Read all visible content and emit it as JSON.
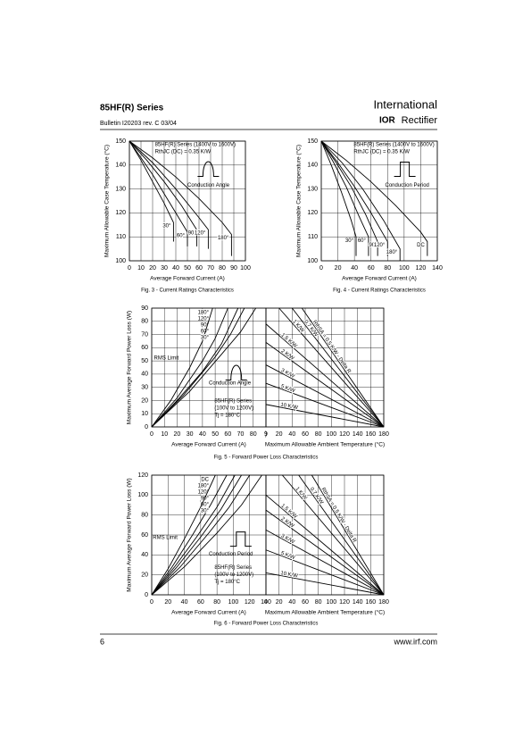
{
  "header": {
    "title": "85HF(R) Series",
    "bulletin": "Bulletin  I20203  rev. C  03/04",
    "logo_top": "International",
    "logo_ior": "IOR",
    "logo_bottom": "Rectifier"
  },
  "footer": {
    "page": "6",
    "url": "www.irf.com"
  },
  "chart_data": [
    {
      "type": "line",
      "color": "#000000",
      "grid": true,
      "xlabel": "Average Forward Current (A)",
      "ylabel": "Maximum Allowable Case Temperature (°C)",
      "caption": "Fig. 3 - Current Ratings Characteristics",
      "xlim": [
        0,
        100
      ],
      "xticks": [
        0,
        10,
        20,
        30,
        40,
        50,
        60,
        70,
        80,
        90,
        100
      ],
      "ylim": [
        100,
        150
      ],
      "yticks": [
        100,
        110,
        120,
        130,
        140,
        150
      ],
      "annotations": [
        "85HF(R) Series (1400V to 1600V)",
        "RthJC (DC) = 0.35 K/W",
        "Conduction Angle"
      ],
      "series": [
        {
          "name": "30°",
          "x": [
            0,
            10,
            20,
            30,
            38,
            38
          ],
          "values": [
            150,
            142,
            133,
            124,
            116,
            108
          ]
        },
        {
          "name": "60°",
          "x": [
            0,
            10,
            20,
            30,
            40,
            50,
            50
          ],
          "values": [
            150,
            143,
            136,
            128,
            120,
            112,
            106
          ]
        },
        {
          "name": "90",
          "x": [
            0,
            15,
            30,
            45,
            58,
            58
          ],
          "values": [
            150,
            142,
            133,
            123,
            113,
            106
          ]
        },
        {
          "name": "120°",
          "x": [
            0,
            20,
            40,
            60,
            68,
            68
          ],
          "values": [
            150,
            141,
            130,
            118,
            113,
            105
          ]
        },
        {
          "name": "180°",
          "x": [
            0,
            20,
            40,
            60,
            80,
            88,
            88
          ],
          "values": [
            150,
            143,
            135,
            126,
            116,
            111,
            102
          ]
        }
      ]
    },
    {
      "type": "line",
      "color": "#000000",
      "grid": true,
      "xlabel": "Average Forward Current (A)",
      "ylabel": "Maximum Allowable Case Temperature (°C)",
      "caption": "Fig. 4 - Current Ratings Characteristics",
      "xlim": [
        0,
        140
      ],
      "xticks": [
        0,
        20,
        40,
        60,
        80,
        100,
        120,
        140
      ],
      "ylim": [
        100,
        150
      ],
      "yticks": [
        100,
        110,
        120,
        130,
        140,
        150
      ],
      "annotations": [
        "85HF(R) Series (1400V to 1600V)",
        "RthJC (DC) = 0.35 K/W",
        "Conduction Period"
      ],
      "series": [
        {
          "name": "30°",
          "x": [
            0,
            12,
            24,
            36,
            42,
            42
          ],
          "values": [
            150,
            140,
            129,
            117,
            110,
            102
          ]
        },
        {
          "name": "60°",
          "x": [
            0,
            15,
            30,
            45,
            57,
            57
          ],
          "values": [
            150,
            141,
            131,
            119,
            110,
            102
          ]
        },
        {
          "name": "90",
          "x": [
            0,
            18,
            36,
            54,
            68,
            68
          ],
          "values": [
            150,
            141,
            131,
            119,
            108,
            102
          ]
        },
        {
          "name": "120°",
          "x": [
            0,
            20,
            40,
            60,
            80,
            80
          ],
          "values": [
            150,
            141,
            131,
            120,
            108,
            102
          ]
        },
        {
          "name": "180°",
          "x": [
            0,
            25,
            50,
            75,
            95,
            95
          ],
          "values": [
            150,
            141,
            130,
            117,
            105,
            100
          ]
        },
        {
          "name": "DC",
          "x": [
            0,
            30,
            60,
            90,
            120,
            128,
            128
          ],
          "values": [
            150,
            142,
            133,
            123,
            112,
            108,
            102
          ]
        }
      ]
    },
    {
      "type": "line",
      "color": "#000000",
      "grid": true,
      "xlabel": "Average Forward Current (A)",
      "ylabel": "Maximum Average Forward Power Loss (W)",
      "caption": "Fig. 5 - Forward Power Loss Characteristics",
      "xlim": [
        0,
        90
      ],
      "xticks": [
        0,
        10,
        20,
        30,
        40,
        50,
        60,
        70,
        80,
        {
          "value": 90,
          "label": "9"
        }
      ],
      "ylim": [
        0,
        90
      ],
      "yticks": [
        0,
        10,
        20,
        30,
        40,
        50,
        60,
        70,
        80,
        90
      ],
      "annotations": [
        "RMS Limit",
        "Conduction Angle",
        "85HF(R) Series",
        "(100V to 1200V)",
        "Tj = 180°C"
      ],
      "series": [
        {
          "name": "180°",
          "x": [
            0,
            30,
            55,
            70,
            82
          ],
          "values": [
            0,
            27,
            55,
            72,
            90
          ]
        },
        {
          "name": "120°",
          "x": [
            0,
            25,
            50,
            62,
            73
          ],
          "values": [
            0,
            24,
            53,
            70,
            90
          ]
        },
        {
          "name": "90°",
          "x": [
            0,
            20,
            40,
            55,
            68
          ],
          "values": [
            0,
            20,
            42,
            63,
            90
          ]
        },
        {
          "name": "60°",
          "x": [
            0,
            20,
            40,
            50,
            60
          ],
          "values": [
            0,
            22,
            50,
            67,
            90
          ]
        },
        {
          "name": "30°",
          "x": [
            0,
            15,
            30,
            40,
            48
          ],
          "values": [
            0,
            20,
            45,
            65,
            90
          ]
        }
      ]
    },
    {
      "type": "line",
      "color": "#000000",
      "grid": true,
      "xlabel": "Maximum Allowable Ambient Temperature (°C)",
      "xlim": [
        0,
        180
      ],
      "xticks": [
        {
          "value": 0,
          "label": ")"
        },
        20,
        40,
        60,
        80,
        100,
        120,
        140,
        160,
        180
      ],
      "ylim": [
        0,
        90
      ],
      "series": [
        {
          "name": "RthSA = 0.5 K/W - Delta R",
          "x": [
            55,
            180
          ],
          "values": [
            90,
            0
          ]
        },
        {
          "name": "0.7 K/W",
          "x": [
            40,
            180
          ],
          "values": [
            90,
            0
          ]
        },
        {
          "name": "1 K/W",
          "x": [
            20,
            180
          ],
          "values": [
            90,
            0
          ]
        },
        {
          "name": "1.5 K/W",
          "x": [
            0,
            180
          ],
          "values": [
            78,
            0
          ]
        },
        {
          "name": "2 K/W",
          "x": [
            0,
            180
          ],
          "values": [
            64,
            0
          ]
        },
        {
          "name": "3 K/W",
          "x": [
            0,
            180
          ],
          "values": [
            47,
            0
          ]
        },
        {
          "name": "5 K/W",
          "x": [
            0,
            180
          ],
          "values": [
            33,
            0
          ]
        },
        {
          "name": "10 K/W",
          "x": [
            0,
            180
          ],
          "values": [
            17,
            0
          ]
        }
      ]
    },
    {
      "type": "line",
      "color": "#000000",
      "grid": true,
      "xlabel": "Average Forward Current (A)",
      "ylabel": "Maximum Average Forward Power Loss (W)",
      "caption": "Fig. 6 - Forward Power Loss Characteristics",
      "xlim": [
        0,
        140
      ],
      "xticks": [
        0,
        20,
        40,
        60,
        80,
        100,
        120,
        140
      ],
      "ylim": [
        0,
        120
      ],
      "yticks": [
        0,
        20,
        40,
        60,
        80,
        100,
        120
      ],
      "annotations": [
        "RMS Limit",
        "Conduction Period",
        "85HF(R) Series",
        "(100V to 1200V)",
        "Tj = 180°C"
      ],
      "series": [
        {
          "name": "DC",
          "x": [
            0,
            40,
            80,
            110,
            135
          ],
          "values": [
            0,
            28,
            62,
            90,
            120
          ]
        },
        {
          "name": "180°",
          "x": [
            0,
            35,
            70,
            95,
            120
          ],
          "values": [
            0,
            28,
            62,
            88,
            120
          ]
        },
        {
          "name": "120°",
          "x": [
            0,
            30,
            60,
            85,
            110
          ],
          "values": [
            0,
            27,
            58,
            86,
            120
          ]
        },
        {
          "name": "90°",
          "x": [
            0,
            28,
            55,
            80,
            102
          ],
          "values": [
            0,
            28,
            58,
            88,
            120
          ]
        },
        {
          "name": "60°",
          "x": [
            0,
            25,
            50,
            72,
            92
          ],
          "values": [
            0,
            28,
            60,
            90,
            120
          ]
        },
        {
          "name": "30°",
          "x": [
            0,
            20,
            40,
            60,
            78
          ],
          "values": [
            0,
            26,
            56,
            88,
            120
          ]
        }
      ]
    },
    {
      "type": "line",
      "color": "#000000",
      "grid": true,
      "xlabel": "Maximum Allowable Ambient Temperature (°C)",
      "xlim": [
        0,
        180
      ],
      "xticks": [
        0,
        20,
        40,
        60,
        80,
        100,
        120,
        140,
        160,
        180
      ],
      "ylim": [
        0,
        120
      ],
      "series": [
        {
          "name": "RthSA = 0.5 K/W - Delta R",
          "x": [
            70,
            180
          ],
          "values": [
            120,
            0
          ]
        },
        {
          "name": "0.7 K/W",
          "x": [
            50,
            180
          ],
          "values": [
            120,
            0
          ]
        },
        {
          "name": "1 K/W",
          "x": [
            25,
            180
          ],
          "values": [
            120,
            0
          ]
        },
        {
          "name": "1.5 K/W",
          "x": [
            0,
            180
          ],
          "values": [
            100,
            0
          ]
        },
        {
          "name": "2 K/W",
          "x": [
            0,
            180
          ],
          "values": [
            85,
            0
          ]
        },
        {
          "name": "3 K/W",
          "x": [
            0,
            180
          ],
          "values": [
            65,
            0
          ]
        },
        {
          "name": "5 K/W",
          "x": [
            0,
            180
          ],
          "values": [
            45,
            0
          ]
        },
        {
          "name": "10 K/W",
          "x": [
            0,
            180
          ],
          "values": [
            22,
            0
          ]
        }
      ]
    }
  ]
}
